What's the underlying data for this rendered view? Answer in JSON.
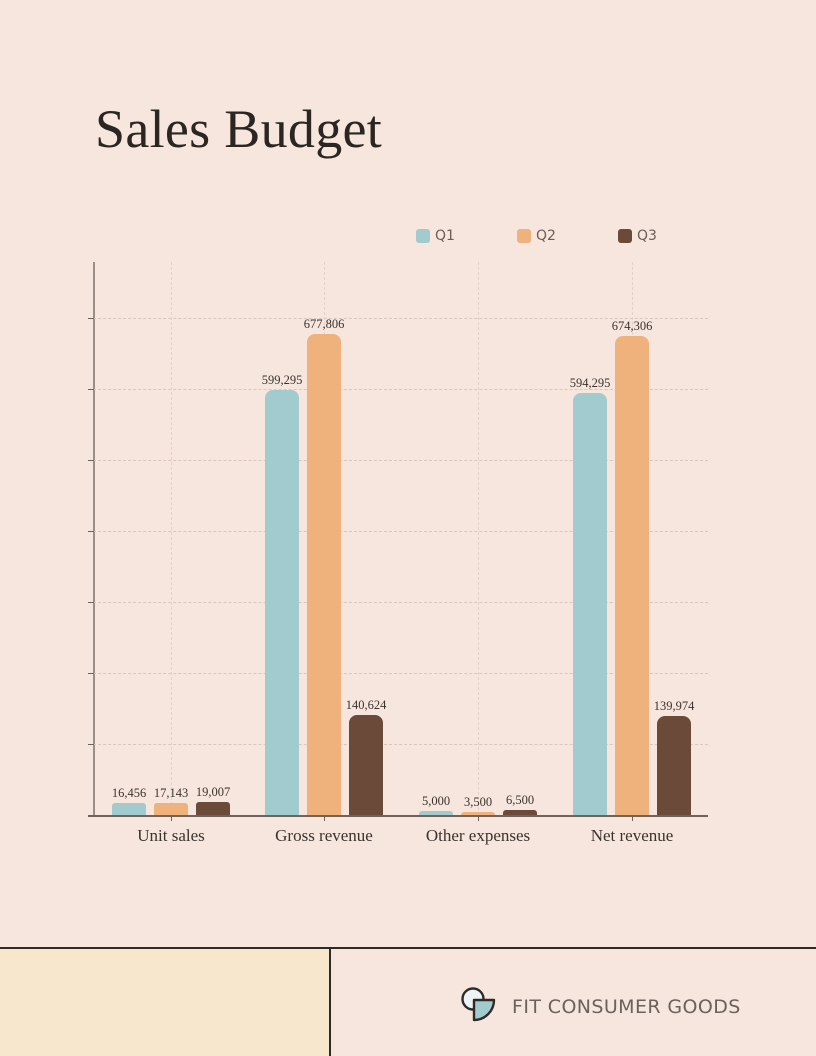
{
  "title": "Sales Budget",
  "colors": {
    "Q1": "#a2cbd0",
    "Q2": "#efb27c",
    "Q3": "#6b4a3a",
    "background": "#f6e6dd",
    "footer_left": "#f6e7cd"
  },
  "legend": [
    {
      "label": "Q1",
      "color": "#a2cbd0"
    },
    {
      "label": "Q2",
      "color": "#efb27c"
    },
    {
      "label": "Q3",
      "color": "#6b4a3a"
    }
  ],
  "chart_data": {
    "type": "bar",
    "title": "Sales Budget",
    "categories": [
      "Unit sales",
      "Gross revenue",
      "Other expenses",
      "Net revenue"
    ],
    "series": [
      {
        "name": "Q1",
        "values": [
          16456,
          599295,
          5000,
          594295
        ]
      },
      {
        "name": "Q2",
        "values": [
          17143,
          677806,
          3500,
          674306
        ]
      },
      {
        "name": "Q3",
        "values": [
          19007,
          140624,
          6500,
          139974
        ]
      }
    ],
    "value_labels": {
      "Q1": [
        "16,456",
        "599,295",
        "5,000",
        "594,295"
      ],
      "Q2": [
        "17,143",
        "677,806",
        "3,500",
        "674,306"
      ],
      "Q3": [
        "19,007",
        "140,624",
        "6,500",
        "139,974"
      ]
    },
    "xlabel": "",
    "ylabel": "",
    "ylim": [
      0,
      780000
    ],
    "yticks": [
      0,
      100000,
      200000,
      300000,
      400000,
      500000,
      600000,
      700000
    ],
    "ytick_labels_shown": false,
    "grid": true,
    "legend_position": "top-right"
  },
  "footer": {
    "brand_name": "FIT CONSUMER GOODS",
    "logo_icon": "circle-and-quarter-circle-logo"
  }
}
